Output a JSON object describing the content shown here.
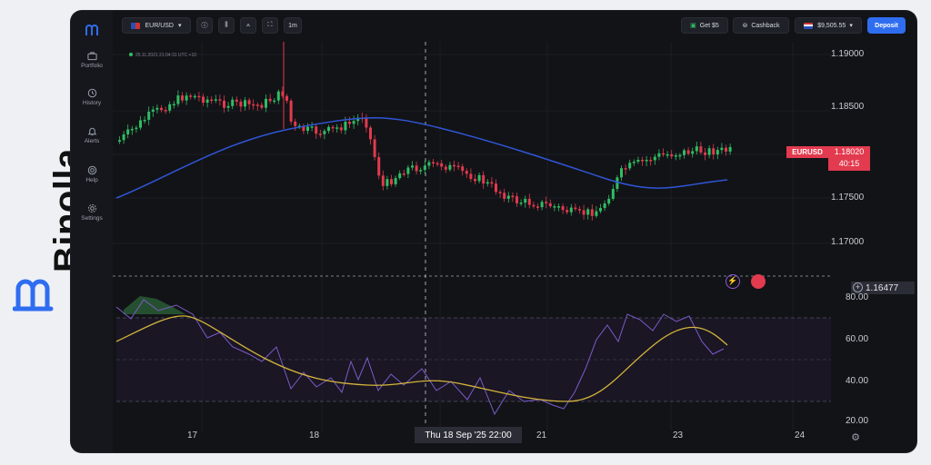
{
  "brand": {
    "name": "Binolla",
    "accent": "#2f6df0"
  },
  "sidebar": {
    "items": [
      {
        "label": "Portfolio",
        "icon": "briefcase-icon"
      },
      {
        "label": "History",
        "icon": "clock-icon"
      },
      {
        "label": "Alerts",
        "icon": "bell-icon"
      },
      {
        "label": "Help",
        "icon": "lifebuoy-icon"
      },
      {
        "label": "Settings",
        "icon": "gear-icon"
      }
    ]
  },
  "toolbar": {
    "symbol": "EUR/USD",
    "interval": "1m",
    "get_bonus": "Get $5",
    "cashback": "Cashback",
    "balance": "$9,505.55",
    "deposit": "Deposit"
  },
  "chart": {
    "timestamp": "25.11.2021  21:04:31  UTC +10",
    "symbol_tag": "EURUSD",
    "current_price": "1.18020",
    "countdown": "40:15",
    "price_levels": [
      "1.19000",
      "1.18500",
      "1.18000",
      "1.17500",
      "1.17000"
    ],
    "last_line_price": "1.16477",
    "rsi_levels": [
      "80.00",
      "60.00",
      "40.00",
      "20.00"
    ],
    "x_days": [
      "17",
      "18",
      "21",
      "23",
      "24"
    ],
    "crosshair_label": "Thu 18 Sep '25   22:00",
    "colors": {
      "up": "#2fbe63",
      "down": "#e23a4e",
      "ma": "#2f56d6",
      "rsi": "#7b5cc9",
      "rsi_ma": "#d4b53a"
    }
  }
}
